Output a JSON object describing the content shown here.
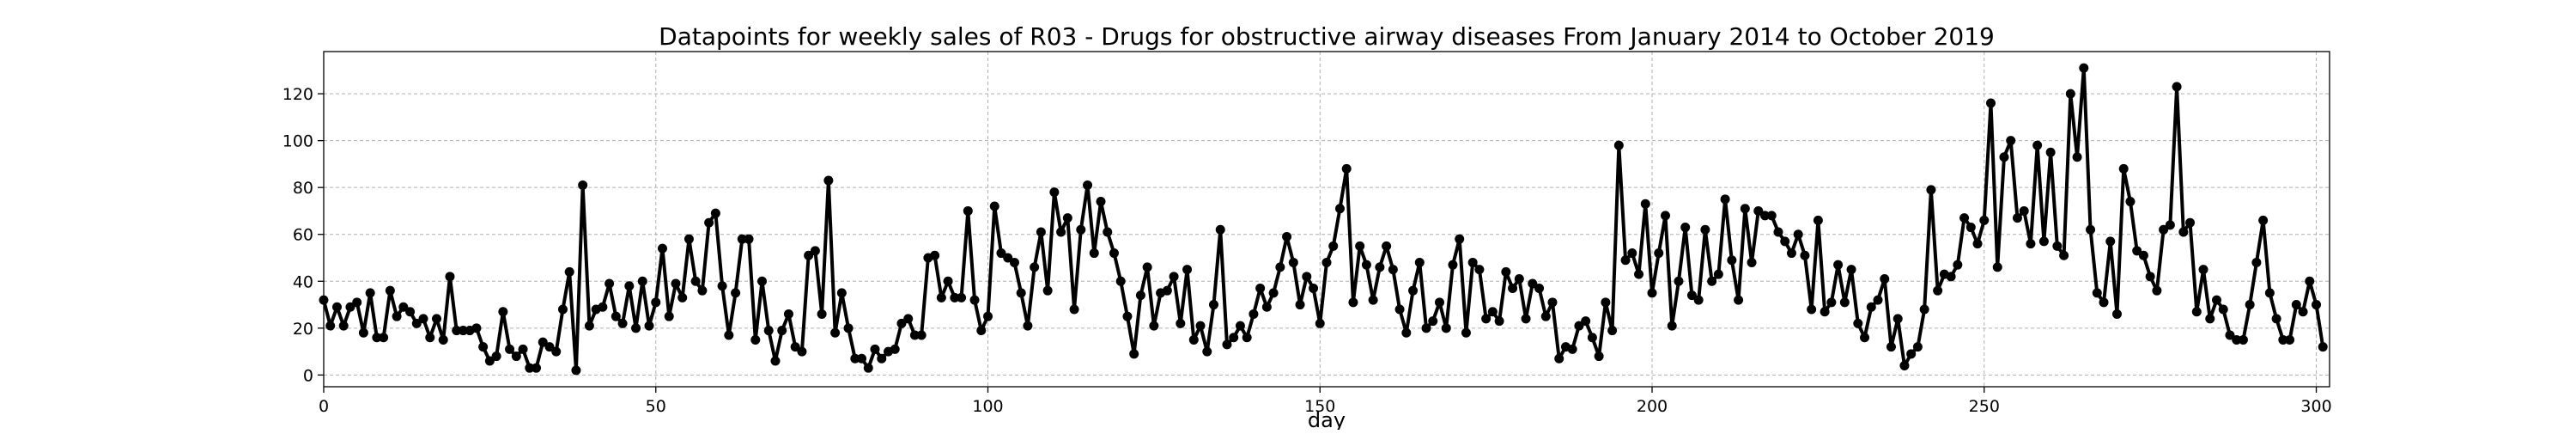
{
  "chart_data": {
    "type": "line",
    "title": "Datapoints for weekly sales of R03 - Drugs for obstructive airway diseases From January 2014 to October 2019",
    "xlabel": "day",
    "ylabel": "",
    "xlim": [
      0,
      302
    ],
    "ylim": [
      -5,
      138
    ],
    "xticks": [
      0,
      50,
      100,
      150,
      200,
      250,
      300
    ],
    "yticks": [
      0,
      20,
      40,
      60,
      80,
      100,
      120
    ],
    "grid": true,
    "line_color": "#000000",
    "marker": "circle",
    "series": [
      {
        "x": [
          0,
          1,
          2,
          3,
          4,
          5,
          6,
          7,
          8,
          9,
          10,
          11,
          12,
          13,
          14,
          15,
          16,
          17,
          18,
          19,
          20,
          21,
          22,
          23,
          24,
          25,
          26,
          27,
          28,
          29,
          30,
          31,
          32,
          33,
          34,
          35,
          36,
          37,
          38,
          39,
          40,
          41,
          42,
          43,
          44,
          45,
          46,
          47,
          48,
          49,
          50,
          51,
          52,
          53,
          54,
          55,
          56,
          57,
          58,
          59,
          60,
          61,
          62,
          63,
          64,
          65,
          66,
          67,
          68,
          69,
          70,
          71,
          72,
          73,
          74,
          75,
          76,
          77,
          78,
          79,
          80,
          81,
          82,
          83,
          84,
          85,
          86,
          87,
          88,
          89,
          90,
          91,
          92,
          93,
          94,
          95,
          96,
          97,
          98,
          99,
          100,
          101,
          102,
          103,
          104,
          105,
          106,
          107,
          108,
          109,
          110,
          111,
          112,
          113,
          114,
          115,
          116,
          117,
          118,
          119,
          120,
          121,
          122,
          123,
          124,
          125,
          126,
          127,
          128,
          129,
          130,
          131,
          132,
          133,
          134,
          135,
          136,
          137,
          138,
          139,
          140,
          141,
          142,
          143,
          144,
          145,
          146,
          147,
          148,
          149,
          150,
          151,
          152,
          153,
          154,
          155,
          156,
          157,
          158,
          159,
          160,
          161,
          162,
          163,
          164,
          165,
          166,
          167,
          168,
          169,
          170,
          171,
          172,
          173,
          174,
          175,
          176,
          177,
          178,
          179,
          180,
          181,
          182,
          183,
          184,
          185,
          186,
          187,
          188,
          189,
          190,
          191,
          192,
          193,
          194,
          195,
          196,
          197,
          198,
          199,
          200,
          201,
          202,
          203,
          204,
          205,
          206,
          207,
          208,
          209,
          210,
          211,
          212,
          213,
          214,
          215,
          216,
          217,
          218,
          219,
          220,
          221,
          222,
          223,
          224,
          225,
          226,
          227,
          228,
          229,
          230,
          231,
          232,
          233,
          234,
          235,
          236,
          237,
          238,
          239,
          240,
          241,
          242,
          243,
          244,
          245,
          246,
          247,
          248,
          249,
          250,
          251,
          252,
          253,
          254,
          255,
          256,
          257,
          258,
          259,
          260,
          261,
          262,
          263,
          264,
          265,
          266,
          267,
          268,
          269,
          270,
          271,
          272,
          273,
          274,
          275,
          276,
          277,
          278,
          279,
          280,
          281,
          282,
          283,
          284,
          285,
          286,
          287,
          288,
          289,
          290,
          291,
          292,
          293,
          294,
          295,
          296,
          297,
          298,
          299,
          300,
          301
        ],
        "values": [
          32,
          21,
          29,
          21,
          29,
          31,
          18,
          35,
          16,
          16,
          36,
          25,
          29,
          27,
          22,
          24,
          16,
          24,
          15,
          42,
          19,
          19,
          19,
          20,
          12,
          6,
          8,
          27,
          11,
          8,
          11,
          3,
          3,
          14,
          12,
          10,
          28,
          44,
          2,
          81,
          21,
          28,
          29,
          39,
          25,
          22,
          38,
          20,
          40,
          21,
          31,
          54,
          25,
          39,
          33,
          58,
          40,
          36,
          65,
          69,
          38,
          17,
          35,
          58,
          58,
          15,
          40,
          19,
          6,
          19,
          26,
          12,
          10,
          51,
          53,
          26,
          83,
          18,
          35,
          20,
          7,
          7,
          3,
          11,
          7,
          10,
          11,
          22,
          24,
          17,
          17,
          50,
          51,
          33,
          40,
          33,
          33,
          70,
          32,
          19,
          25,
          72,
          52,
          50,
          48,
          35,
          21,
          46,
          61,
          36,
          78,
          61,
          67,
          28,
          62,
          81,
          52,
          74,
          61,
          52,
          40,
          25,
          9,
          34,
          46,
          21,
          35,
          36,
          42,
          22,
          45,
          15,
          21,
          10,
          30,
          62,
          13,
          16,
          21,
          16,
          26,
          37,
          29,
          35,
          46,
          59,
          48,
          30,
          42,
          37,
          22,
          48,
          55,
          71,
          88,
          31,
          55,
          47,
          32,
          46,
          55,
          45,
          28,
          18,
          36,
          48,
          20,
          23,
          31,
          20,
          47,
          58,
          18,
          48,
          45,
          24,
          27,
          23,
          44,
          37,
          41,
          24,
          39,
          37,
          25,
          31,
          7,
          12,
          11,
          21,
          23,
          16,
          8,
          31,
          19,
          98,
          49,
          52,
          43,
          73,
          35,
          52,
          68,
          21,
          40,
          63,
          34,
          32,
          62,
          40,
          43,
          75,
          49,
          32,
          71,
          48,
          70,
          68,
          68,
          61,
          57,
          52,
          60,
          51,
          28,
          66,
          27,
          31,
          47,
          31,
          45,
          22,
          16,
          29,
          32,
          41,
          12,
          24,
          4,
          9,
          12,
          28,
          79,
          36,
          43,
          42,
          47,
          67,
          63,
          56,
          66,
          116,
          46,
          93,
          100,
          67,
          70,
          56,
          98,
          57,
          95,
          55,
          51,
          120,
          93,
          131,
          62,
          35,
          31,
          57,
          26,
          88,
          74,
          53,
          51,
          42,
          36,
          62,
          64,
          123,
          61,
          65,
          27,
          45,
          24,
          32,
          28,
          17,
          15,
          15,
          30,
          48,
          66,
          35,
          24,
          15,
          15,
          30,
          27,
          40,
          30,
          12
        ]
      }
    ]
  }
}
